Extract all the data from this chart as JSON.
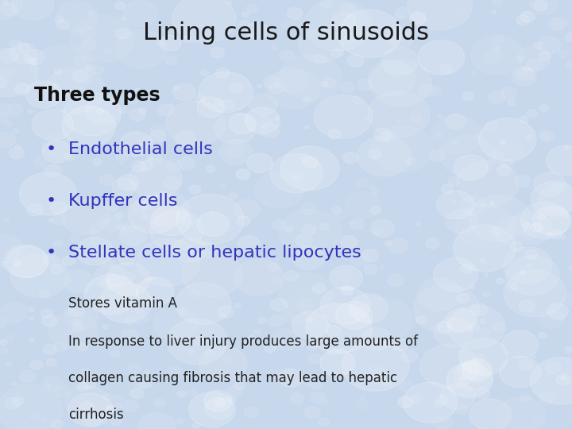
{
  "title": "Lining cells of sinusoids",
  "title_color": "#1a1a1a",
  "title_fontsize": 22,
  "background_color": "#c8d8ec",
  "subtitle": "Three types",
  "subtitle_color": "#111111",
  "subtitle_fontsize": 17,
  "bullet_color": "#3333bb",
  "bullet_fontsize": 16,
  "bullets": [
    "Endothelial cells",
    "Kupffer cells",
    "Stellate cells or hepatic lipocytes"
  ],
  "subbullet_color": "#222222",
  "subbullet_fontsize": 12,
  "subbullet1": "Stores vitamin A",
  "subbullet2_line1": "In response to liver injury produces large amounts of",
  "subbullet2_line2": "collagen causing fibrosis that may lead to hepatic",
  "subbullet2_line3": "cirrhosis"
}
